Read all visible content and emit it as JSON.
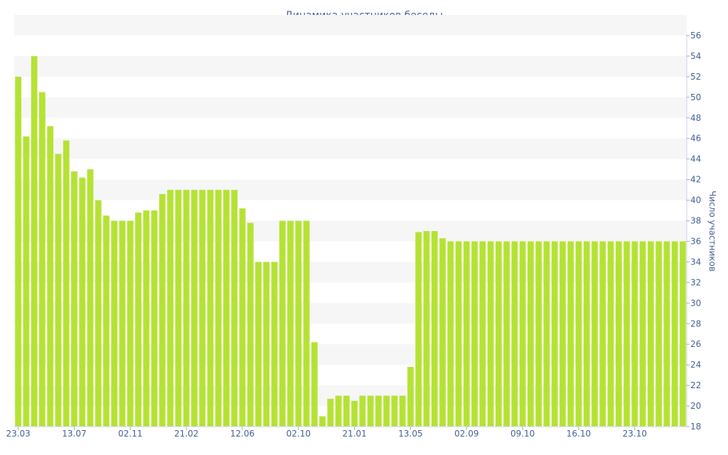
{
  "chart_data": {
    "type": "bar",
    "title": "Динамика участников беседы",
    "xlabel": "",
    "ylabel": "Число участников",
    "ylim": [
      18,
      56
    ],
    "yticks": [
      18,
      20,
      22,
      24,
      26,
      28,
      30,
      32,
      34,
      36,
      38,
      40,
      42,
      44,
      46,
      48,
      50,
      52,
      54,
      56
    ],
    "y_axis_side": "right",
    "grid": "alternating horizontal bands",
    "x_tick_labels": [
      {
        "label": "23.03",
        "index": 0
      },
      {
        "label": "13.07",
        "index": 7
      },
      {
        "label": "02.11",
        "index": 14
      },
      {
        "label": "21.02",
        "index": 21
      },
      {
        "label": "12.06",
        "index": 28
      },
      {
        "label": "02.10",
        "index": 35
      },
      {
        "label": "21.01",
        "index": 42
      },
      {
        "label": "13.05",
        "index": 49
      },
      {
        "label": "02.09",
        "index": 56
      },
      {
        "label": "09.10",
        "index": 63
      },
      {
        "label": "16.10",
        "index": 70
      },
      {
        "label": "23.10",
        "index": 77
      }
    ],
    "values": [
      52,
      46.2,
      54,
      50.5,
      47.2,
      44.5,
      45.8,
      42.8,
      42.2,
      43,
      40,
      38.5,
      38,
      38,
      38,
      38.8,
      39,
      39,
      40.6,
      41,
      41,
      41,
      41,
      41,
      41,
      41,
      41,
      41,
      39.2,
      37.8,
      34,
      34,
      34,
      38,
      38,
      38,
      38,
      26.2,
      19,
      20.7,
      21,
      21,
      20.5,
      21,
      21,
      21,
      21,
      21,
      21,
      23.8,
      36.9,
      37,
      37,
      36.3,
      36,
      36,
      36,
      36,
      36,
      36,
      36,
      36,
      36,
      36,
      36,
      36,
      36,
      36,
      36,
      36,
      36,
      36,
      36,
      36,
      36,
      36,
      36,
      36,
      36,
      36,
      36,
      36,
      36,
      36
    ],
    "colors": {
      "bar": "#b5e234",
      "axis_text": "#3e5c92",
      "band": "#f6f6f6"
    }
  }
}
